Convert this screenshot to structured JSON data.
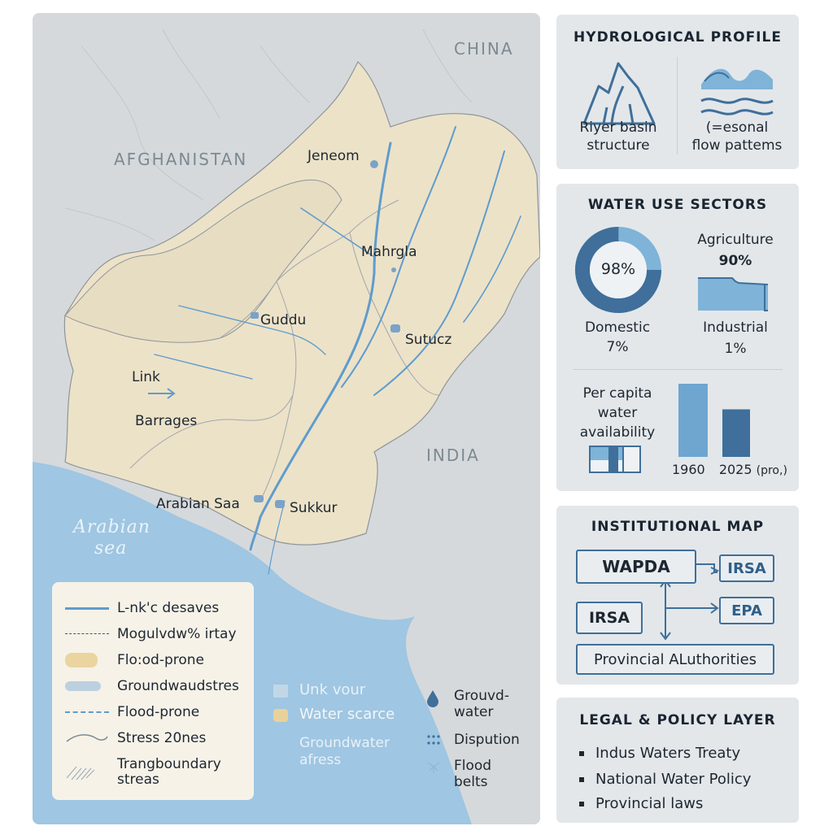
{
  "map": {
    "countries": {
      "afghanistan": "AFGHANISTAN",
      "china": "CHINA",
      "india": "INDIA"
    },
    "places": {
      "jeneom": "Jeneom",
      "mahrgla": "Mahrgla",
      "guddu": "Guddu",
      "sutucz": "Sutucz",
      "link": "Link",
      "barrages": "Barrages",
      "arabian_saa": "Arabian Saa",
      "sukkur": "Sukkur"
    },
    "sea": {
      "line1": "Arabian",
      "line2": "sea"
    },
    "legend": [
      "L-nk'c desaves",
      "Mogulvdw% irtay",
      "Flo:od-prone",
      "Groundwaudstres",
      "Flood-prone",
      "Stress 20nes",
      "Trangboundary",
      "streas"
    ],
    "sub_legend": {
      "unk_vour": "Unk vour",
      "water_scarce": "Water scarce",
      "groundwater_line1": "Groundwater",
      "groundwater_line2": "afress",
      "ground_water_line1": "Grouvd-",
      "ground_water_line2": "water",
      "disruption": "Dispution",
      "flood_line1": "Flood",
      "flood_line2": "belts"
    }
  },
  "hydro": {
    "title": "HYDROLOGICAL PROFILE",
    "item1_line1": "Riyer basin",
    "item1_line2": "structure",
    "item2_line1": "(=esonal",
    "item2_line2": "flow pattems"
  },
  "water_use": {
    "title": "WATER USE SECTORS",
    "donut_value": "98%",
    "donut_fraction": 0.98,
    "agri_label": "Agriculture",
    "agri_value": "90%",
    "domestic_label": "Domestic",
    "domestic_value": "7%",
    "industrial_label": "Industrial",
    "industrial_value": "1%",
    "per_capita_line1": "Per capita",
    "per_capita_line2": "water",
    "per_capita_line3": "availability",
    "bar_years": [
      "1960",
      "2025"
    ],
    "bar_suffix": "(pro,)",
    "bar_values": [
      1.0,
      0.65
    ]
  },
  "institutional": {
    "title": "INSTITUTIONAL MAP",
    "wapda": "WAPDA",
    "irsa_right": "IRSA",
    "irsa_left": "IRSA",
    "epa": "EPA",
    "provincial": "Provincial ALuthorities"
  },
  "legal": {
    "title": "LEGAL & POLICY LAYER",
    "items": [
      "Indus Waters Treaty",
      "National Water Policy",
      "Provincial laws"
    ]
  },
  "colors": {
    "land": "#ece2c8",
    "sea": "#9fc6e2",
    "river": "#5f9ccd",
    "panel": "#e3e7ea",
    "accent": "#3f6f9a"
  }
}
